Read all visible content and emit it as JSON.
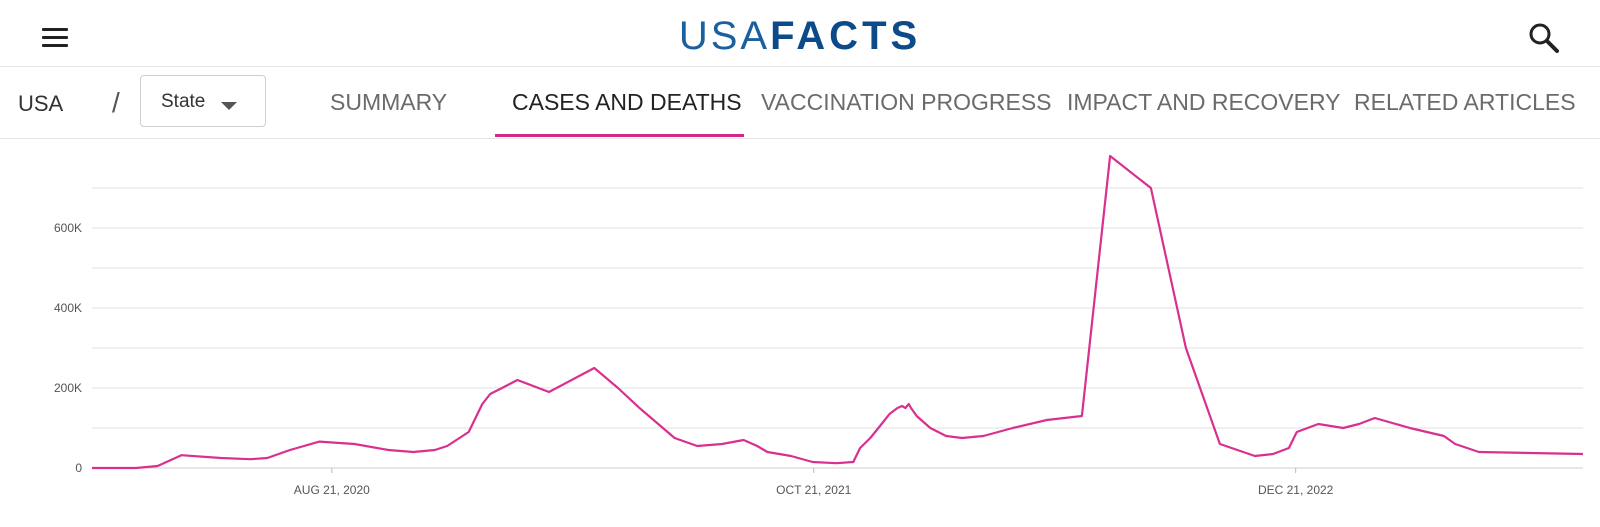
{
  "header": {
    "menu_icon": "hamburger-menu-icon",
    "logo_light": "USA",
    "logo_bold": "FACTS",
    "search_icon": "search-icon",
    "accent_color": "#0d4a8a"
  },
  "nav": {
    "breadcrumb_root": "USA",
    "breadcrumb_separator": "/",
    "state_select": {
      "selected": "State"
    },
    "tabs": [
      {
        "label": "SUMMARY",
        "active": false
      },
      {
        "label": "CASES AND DEATHS",
        "active": true
      },
      {
        "label": "VACCINATION PROGRESS",
        "active": false
      },
      {
        "label": "IMPACT AND RECOVERY",
        "active": false
      },
      {
        "label": "RELATED ARTICLES",
        "active": false
      }
    ],
    "active_color": "#d1278a"
  },
  "chart_data": {
    "type": "line",
    "title": "",
    "xlabel": "",
    "ylabel": "",
    "ylim": [
      0,
      800000
    ],
    "ytick_labels": [
      "0",
      "200K",
      "400K",
      "600K"
    ],
    "yticks": [
      0,
      200000,
      400000,
      600000
    ],
    "xtick_labels": [
      "AUG 21, 2020",
      "OCT 21, 2021",
      "DEC 21, 2022"
    ],
    "xticks": [
      "2020-08-21",
      "2021-10-21",
      "2022-12-21"
    ],
    "grid": true,
    "line_color": "#d9308f",
    "series": [
      {
        "x": [
          "2020-01-22",
          "2020-03-01",
          "2020-03-20",
          "2020-04-10",
          "2020-05-15",
          "2020-06-10",
          "2020-06-25",
          "2020-07-15",
          "2020-08-10",
          "2020-09-10",
          "2020-10-10",
          "2020-11-01",
          "2020-11-20",
          "2020-12-01",
          "2020-12-20",
          "2021-01-01",
          "2021-01-08",
          "2021-01-15",
          "2021-02-01",
          "2021-03-01",
          "2021-04-10",
          "2021-05-01",
          "2021-05-20",
          "2021-06-20",
          "2021-07-10",
          "2021-08-01",
          "2021-08-20",
          "2021-09-01",
          "2021-09-10",
          "2021-10-01",
          "2021-10-20",
          "2021-11-10",
          "2021-11-25",
          "2021-12-01",
          "2021-12-10",
          "2021-12-20",
          "2021-12-27",
          "2022-01-03",
          "2022-01-07",
          "2022-01-10",
          "2022-01-13",
          "2022-01-15",
          "2022-01-20",
          "2022-02-01",
          "2022-02-15",
          "2022-03-01",
          "2022-03-20",
          "2022-04-15",
          "2022-05-15",
          "2022-06-15",
          "2022-07-10",
          "2022-08-15",
          "2022-09-15",
          "2022-10-15",
          "2022-11-15",
          "2022-12-01",
          "2022-12-15",
          "2022-12-22",
          "2023-01-10",
          "2023-02-01",
          "2023-02-15",
          "2023-03-01",
          "2023-04-01",
          "2023-05-01",
          "2023-05-11",
          "2023-06-01",
          "2023-09-01"
        ],
        "y": [
          0,
          0,
          5000,
          32000,
          25000,
          22000,
          25000,
          45000,
          66000,
          60000,
          45000,
          40000,
          45000,
          55000,
          90000,
          160000,
          185000,
          195000,
          220000,
          190000,
          250000,
          200000,
          150000,
          75000,
          55000,
          60000,
          70000,
          55000,
          40000,
          30000,
          15000,
          12000,
          15000,
          50000,
          75000,
          110000,
          135000,
          150000,
          155000,
          150000,
          160000,
          150000,
          130000,
          100000,
          80000,
          75000,
          80000,
          100000,
          120000,
          130000,
          780000,
          700000,
          300000,
          60000,
          30000,
          35000,
          50000,
          90000,
          110000,
          100000,
          110000,
          125000,
          100000,
          80000,
          60000,
          40000,
          35000
        ]
      }
    ]
  }
}
